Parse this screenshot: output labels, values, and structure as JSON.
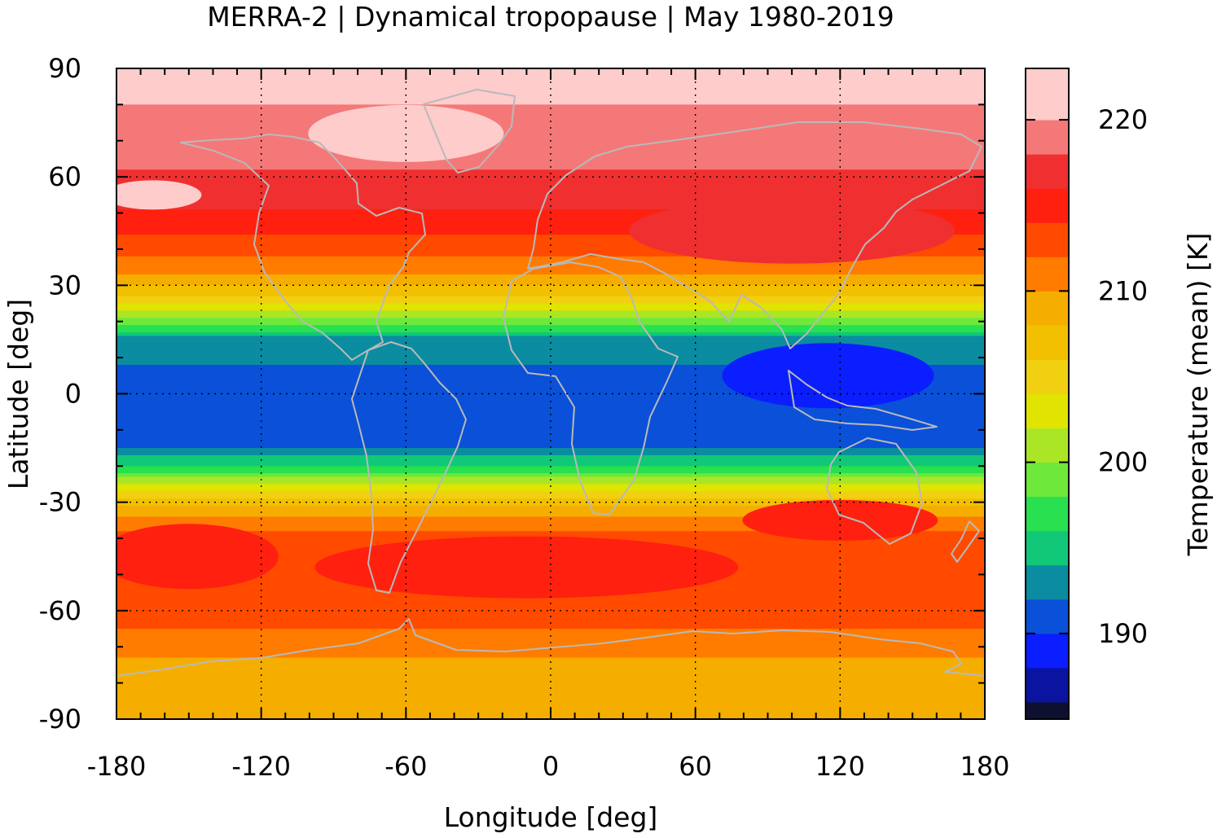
{
  "chart_data": {
    "type": "heatmap",
    "title": "MERRA-2 | Dynamical tropopause | May 1980-2019",
    "xlabel": "Longitude [deg]",
    "ylabel": "Latitude [deg]",
    "xlim": [
      -180,
      180
    ],
    "ylim": [
      -90,
      90
    ],
    "x_ticks": [
      "-180",
      "-120",
      "-60",
      "0",
      "60",
      "120",
      "180"
    ],
    "y_ticks": [
      "90",
      "60",
      "30",
      "0",
      "-30",
      "-60",
      "-90"
    ],
    "grid": true,
    "colorbar": {
      "label": "Temperature (mean) [K]",
      "range": [
        185,
        223
      ],
      "ticks": [
        "220",
        "210",
        "200",
        "190"
      ],
      "levels": [
        {
          "from": 185,
          "to": 186,
          "color": "#0d1030"
        },
        {
          "from": 186,
          "to": 188,
          "color": "#0a14a0"
        },
        {
          "from": 188,
          "to": 190,
          "color": "#0a1eff"
        },
        {
          "from": 190,
          "to": 192,
          "color": "#0a50d8"
        },
        {
          "from": 192,
          "to": 194,
          "color": "#0b8ca0"
        },
        {
          "from": 194,
          "to": 196,
          "color": "#10c878"
        },
        {
          "from": 196,
          "to": 198,
          "color": "#28e050"
        },
        {
          "from": 198,
          "to": 200,
          "color": "#6ee83a"
        },
        {
          "from": 200,
          "to": 202,
          "color": "#aae626"
        },
        {
          "from": 202,
          "to": 204,
          "color": "#e0e400"
        },
        {
          "from": 204,
          "to": 206,
          "color": "#f0d010"
        },
        {
          "from": 206,
          "to": 208,
          "color": "#f2c000"
        },
        {
          "from": 208,
          "to": 210,
          "color": "#f5ae00"
        },
        {
          "from": 210,
          "to": 212,
          "color": "#ff7c00"
        },
        {
          "from": 212,
          "to": 214,
          "color": "#ff4a00"
        },
        {
          "from": 214,
          "to": 216,
          "color": "#ff2010"
        },
        {
          "from": 216,
          "to": 218,
          "color": "#f03030"
        },
        {
          "from": 218,
          "to": 220,
          "color": "#f57878"
        },
        {
          "from": 220,
          "to": 223,
          "color": "#ffcccc"
        }
      ]
    },
    "zonal_profile": {
      "lat": [
        90,
        75,
        65,
        55,
        45,
        38,
        32,
        26,
        20,
        15,
        5,
        -5,
        -15,
        -20,
        -26,
        -32,
        -40,
        -50,
        -60,
        -68,
        -75,
        -82,
        -90
      ],
      "temp": [
        221,
        219.5,
        218.5,
        217,
        214.5,
        212,
        209.5,
        205,
        199,
        193,
        191.5,
        191,
        192,
        196,
        203,
        209,
        213,
        214,
        213.5,
        211,
        209.5,
        208.5,
        208
      ]
    },
    "coastline_color": "#b9b9b9"
  }
}
